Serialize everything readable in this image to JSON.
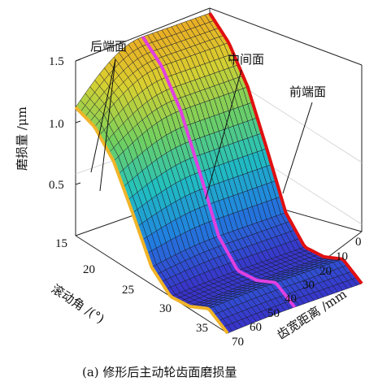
{
  "chart_data": {
    "type": "surface",
    "caption": "(a) 修形后主动轮齿面磨损量",
    "zlabel": "磨损量 /μm",
    "xlabel": "齿宽距离 /mm",
    "ylabel": "滚动角 /(°)",
    "z_ticks": [
      "0.5",
      "1.0",
      "1.5"
    ],
    "z_range": [
      0,
      1.5
    ],
    "x_ticks": [
      "0",
      "10",
      "20",
      "30",
      "40",
      "50",
      "60",
      "70"
    ],
    "x_range": [
      0,
      70
    ],
    "y_ticks": [
      "15",
      "20",
      "25",
      "30",
      "35"
    ],
    "y_range": [
      15,
      35
    ],
    "annotations": [
      {
        "text": "后端面",
        "x": 70
      },
      {
        "text": "中间面",
        "x": 35
      },
      {
        "text": "前端面",
        "x": 0
      }
    ],
    "edge_profiles": [
      {
        "name": "后端面",
        "x": 70,
        "color": "#f0b428",
        "roll_angle": [
          15,
          17.5,
          20,
          22.5,
          25,
          27.5,
          30,
          32.5,
          35
        ],
        "wear": [
          1.04,
          0.98,
          0.8,
          0.48,
          0.14,
          0.0,
          0.02,
          0.1,
          0.0
        ]
      },
      {
        "name": "中间面",
        "x": 35,
        "color": "#e040e0",
        "roll_angle": [
          15,
          17.5,
          20,
          22.5,
          25,
          27.5,
          30,
          32.5,
          35
        ],
        "wear": [
          1.42,
          1.28,
          1.02,
          0.62,
          0.2,
          0.02,
          0.04,
          0.12,
          0.02
        ]
      },
      {
        "name": "前端面",
        "x": 0,
        "color": "#e01010",
        "roll_angle": [
          15,
          17.5,
          20,
          22.5,
          25,
          27.5,
          30,
          32.5,
          35
        ],
        "wear": [
          1.42,
          1.28,
          1.02,
          0.62,
          0.2,
          0.02,
          0.04,
          0.12,
          0.02
        ]
      }
    ],
    "colormap": [
      "#3a30c8",
      "#2080e0",
      "#20c0c0",
      "#70d060",
      "#d8d030",
      "#f0a020"
    ],
    "grid": true
  }
}
